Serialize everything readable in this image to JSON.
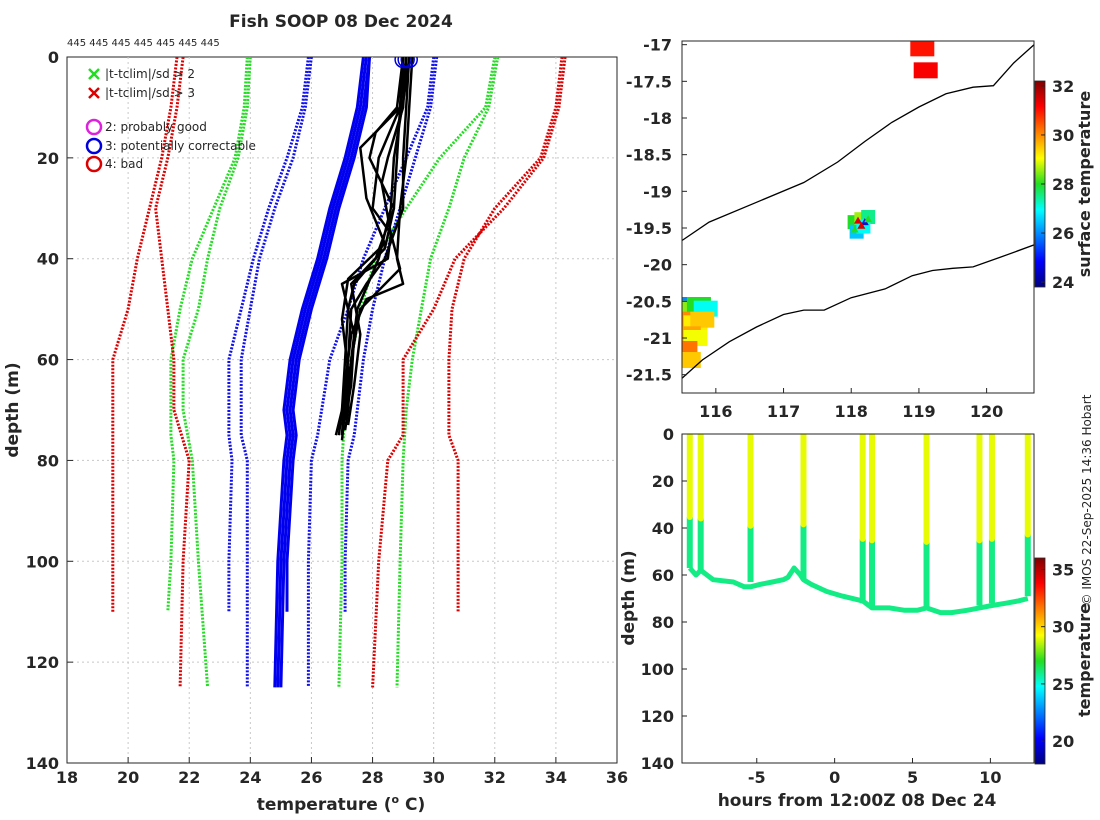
{
  "chart_data": [
    {
      "type": "line",
      "title": "Fish SOOP 08 Dec 2024",
      "top_label": "445 445 445 445 445 445 445",
      "xlabel": "temperature (°C)",
      "xlabel_main": "temperature (",
      "xlabel_sup": "o",
      "xlabel_end": " C)",
      "ylabel": "depth (m)",
      "xlim": [
        18,
        36
      ],
      "ylim": [
        0,
        140
      ],
      "xticks": [
        18,
        20,
        22,
        24,
        26,
        28,
        30,
        32,
        34,
        36
      ],
      "yticks": [
        0,
        20,
        40,
        60,
        80,
        100,
        120,
        140
      ],
      "grid": true,
      "legend": [
        {
          "marker": "x",
          "color": "#22dd22",
          "label": "|t-tclim|/sd > 2"
        },
        {
          "marker": "x",
          "color": "#dd0000",
          "label": "|t-tclim|/sd > 3"
        },
        {
          "marker": "o",
          "color": "#dd22dd",
          "label": "2: probably good"
        },
        {
          "marker": "o",
          "color": "#0000dd",
          "label": "3: potentially correctable"
        },
        {
          "marker": "o",
          "color": "#dd0000",
          "label": "4: bad"
        }
      ],
      "climatology": {
        "green_sd2": [
          {
            "depth": [
              0,
              10,
              20,
              30,
              40,
              50,
              60,
              75,
              80,
              100,
              110
            ],
            "temp": [
              23.9,
              23.8,
              23.5,
              22.8,
              22.1,
              21.7,
              21.4,
              21.4,
              21.5,
              21.4,
              21.3
            ]
          },
          {
            "depth": [
              0,
              10,
              20,
              30,
              40,
              50,
              60,
              70,
              80,
              100,
              125
            ],
            "temp": [
              24.0,
              23.9,
              23.6,
              23.0,
              22.6,
              22.3,
              21.8,
              21.8,
              22.1,
              22.3,
              22.6
            ]
          },
          {
            "depth": [
              0,
              10,
              20,
              30,
              40,
              50,
              60,
              70,
              80,
              100,
              125
            ],
            "temp": [
              32.1,
              31.8,
              31.0,
              30.5,
              29.9,
              29.6,
              29.3,
              29.1,
              29.0,
              28.9,
              28.8
            ]
          },
          {
            "depth": [
              0,
              10,
              20,
              30,
              40,
              50,
              60,
              70,
              80,
              100,
              125
            ],
            "temp": [
              32.0,
              31.7,
              30.2,
              29.1,
              28.1,
              27.6,
              27.3,
              27.1,
              27.0,
              27.0,
              26.9
            ]
          }
        ],
        "red_sd3": [
          {
            "depth": [
              0,
              10,
              20,
              30,
              40,
              50,
              60,
              75,
              80,
              100,
              110
            ],
            "temp": [
              21.6,
              21.4,
              21.1,
              20.7,
              20.3,
              20.0,
              19.5,
              19.5,
              19.5,
              19.5,
              19.5
            ]
          },
          {
            "depth": [
              0,
              10,
              20,
              30,
              40,
              50,
              60,
              70,
              80,
              100,
              125
            ],
            "temp": [
              21.8,
              21.6,
              21.3,
              20.9,
              21.1,
              21.3,
              21.5,
              21.5,
              22.0,
              21.8,
              21.7
            ]
          },
          {
            "depth": [
              0,
              10,
              20,
              30,
              40,
              50,
              60,
              75,
              80,
              100,
              110
            ],
            "temp": [
              34.2,
              34.0,
              33.5,
              32.0,
              31.0,
              30.6,
              30.5,
              30.5,
              30.8,
              30.8,
              30.8
            ]
          },
          {
            "depth": [
              0,
              10,
              20,
              30,
              40,
              50,
              60,
              75,
              80,
              100,
              125
            ],
            "temp": [
              34.3,
              34.1,
              33.6,
              32.3,
              30.7,
              30.0,
              29.0,
              29.0,
              28.5,
              28.2,
              28.0
            ]
          }
        ],
        "blue_mean": [
          {
            "depth": [
              0,
              10,
              20,
              30,
              40,
              50,
              60,
              75,
              80,
              100,
              110
            ],
            "temp": [
              25.9,
              25.7,
              25.2,
              24.6,
              24.1,
              23.7,
              23.3,
              23.3,
              23.4,
              23.3,
              23.3
            ]
          },
          {
            "depth": [
              0,
              10,
              20,
              30,
              40,
              50,
              60,
              75,
              80,
              100,
              125
            ],
            "temp": [
              26.0,
              25.8,
              25.4,
              24.8,
              24.3,
              24.0,
              23.7,
              23.7,
              23.9,
              23.9,
              23.9
            ]
          },
          {
            "depth": [
              0,
              10,
              20,
              30,
              40,
              50,
              60,
              75,
              80,
              100,
              125
            ],
            "temp": [
              30.0,
              29.8,
              29.1,
              28.4,
              27.7,
              27.2,
              26.6,
              26.2,
              26.0,
              25.9,
              25.9
            ]
          },
          {
            "depth": [
              0,
              10,
              20,
              30,
              40,
              50,
              60,
              75,
              80,
              100,
              110
            ],
            "temp": [
              30.1,
              29.9,
              29.4,
              28.9,
              28.4,
              28.0,
              27.7,
              27.4,
              27.2,
              27.1,
              27.1
            ]
          }
        ]
      },
      "observed_profiles": [
        {
          "depth": [
            0,
            10,
            20,
            30,
            40,
            45,
            50,
            60,
            70,
            75
          ],
          "temp": [
            29.2,
            29.1,
            29.0,
            29.0,
            28.4,
            27.8,
            27.3,
            27.2,
            27.0,
            26.8
          ]
        },
        {
          "depth": [
            0,
            10,
            20,
            30,
            40,
            45,
            50,
            60,
            70,
            75
          ],
          "temp": [
            29.0,
            28.9,
            28.8,
            28.7,
            28.1,
            27.4,
            27.2,
            27.1,
            27.0,
            26.9
          ]
        },
        {
          "depth": [
            0,
            10,
            20,
            30,
            35,
            42,
            50,
            60,
            70,
            74
          ],
          "temp": [
            29.1,
            28.9,
            28.2,
            28.0,
            28.6,
            28.9,
            27.6,
            27.3,
            27.2,
            27.1
          ]
        },
        {
          "depth": [
            0,
            10,
            15,
            20,
            30,
            38,
            45,
            55,
            65,
            73
          ],
          "temp": [
            29.0,
            28.8,
            28.1,
            27.9,
            28.7,
            28.4,
            27.3,
            27.6,
            27.4,
            27.2
          ]
        },
        {
          "depth": [
            0,
            10,
            20,
            30,
            40,
            45,
            48,
            55,
            65,
            75
          ],
          "temp": [
            29.3,
            29.2,
            29.1,
            28.9,
            28.8,
            29.0,
            27.8,
            27.3,
            27.1,
            27.0
          ]
        },
        {
          "depth": [
            0,
            10,
            20,
            25,
            35,
            40,
            45,
            55,
            65,
            72
          ],
          "temp": [
            29.1,
            29.0,
            28.5,
            28.3,
            28.6,
            28.5,
            27.0,
            27.4,
            27.3,
            27.1
          ]
        },
        {
          "depth": [
            0,
            5,
            20,
            30,
            40,
            50,
            60,
            70,
            76
          ],
          "temp": [
            29.2,
            29.1,
            28.7,
            28.6,
            28.2,
            27.5,
            27.3,
            27.1,
            27.0
          ]
        },
        {
          "depth": [
            0,
            10,
            18,
            28,
            37,
            44,
            52,
            62,
            72
          ],
          "temp": [
            29.0,
            28.9,
            27.6,
            27.8,
            28.4,
            27.2,
            27.0,
            27.2,
            27.1
          ]
        }
      ],
      "first_guess_profiles": [
        {
          "depth": [
            0,
            10,
            20,
            30,
            40,
            50,
            60,
            70,
            75,
            80,
            100,
            125
          ],
          "temp": [
            27.8,
            27.6,
            27.2,
            26.7,
            26.3,
            25.8,
            25.4,
            25.2,
            25.3,
            25.2,
            25.0,
            24.9
          ]
        },
        {
          "depth": [
            0,
            10,
            20,
            30,
            40,
            50,
            60,
            70,
            75,
            80,
            100,
            125
          ],
          "temp": [
            27.9,
            27.7,
            27.3,
            26.8,
            26.4,
            25.9,
            25.5,
            25.3,
            25.4,
            25.3,
            25.1,
            25.0
          ]
        },
        {
          "depth": [
            0,
            10,
            20,
            30,
            40,
            50,
            60,
            70,
            75,
            80,
            100,
            110
          ],
          "temp": [
            27.9,
            27.8,
            27.4,
            26.9,
            26.5,
            26.0,
            25.6,
            25.4,
            25.5,
            25.4,
            25.2,
            25.2
          ]
        },
        {
          "depth": [
            0,
            10,
            20,
            30,
            40,
            50,
            60,
            70,
            75,
            80,
            100,
            125
          ],
          "temp": [
            27.7,
            27.5,
            27.1,
            26.6,
            26.2,
            25.7,
            25.3,
            25.1,
            25.2,
            25.1,
            24.9,
            24.8
          ]
        }
      ],
      "flag_circles": [
        {
          "depth": 0.5,
          "temp": 29.0,
          "flag": 3
        },
        {
          "depth": 0.5,
          "temp": 29.1,
          "flag": 3
        },
        {
          "depth": 0.5,
          "temp": 29.2,
          "flag": 3
        }
      ]
    },
    {
      "type": "heatmap",
      "title": "",
      "xlim": [
        115.5,
        120.7
      ],
      "ylim": [
        -21.75,
        -16.95
      ],
      "xticks": [
        116,
        117,
        118,
        119,
        120
      ],
      "yticks": [
        -17,
        -17.5,
        -18,
        -18.5,
        -19,
        -19.5,
        -20,
        -20.5,
        -21,
        -21.5
      ],
      "ytick_labels": [
        "-17",
        "-17.5",
        "-18",
        "-18.5",
        "-19",
        "-19.5",
        "-20",
        "-20.5",
        "-21",
        "-21.5"
      ],
      "colorbar_label": "surface temperature",
      "colorbar_range": [
        23.8,
        32.2
      ],
      "colorbar_ticks": [
        24,
        26,
        28,
        30,
        32
      ],
      "coast_outer": {
        "lon": [
          115.5,
          115.9,
          116.6,
          117.3,
          117.8,
          118.2,
          118.6,
          119.0,
          119.4,
          119.8,
          120.1,
          120.4,
          120.7
        ],
        "lat": [
          -19.67,
          -19.42,
          -19.15,
          -18.88,
          -18.6,
          -18.32,
          -18.06,
          -17.85,
          -17.67,
          -17.58,
          -17.56,
          -17.25,
          -17.0
        ]
      },
      "coast_inner": {
        "lon": [
          115.5,
          115.8,
          116.2,
          116.6,
          117.0,
          117.3,
          117.6,
          118.0,
          118.5,
          118.9,
          119.2,
          119.5,
          119.8,
          120.2,
          120.7
        ],
        "lat": [
          -21.55,
          -21.3,
          -21.05,
          -20.85,
          -20.68,
          -20.62,
          -20.62,
          -20.45,
          -20.33,
          -20.15,
          -20.08,
          -20.05,
          -20.03,
          -19.9,
          -19.73
        ]
      },
      "points": [
        {
          "lon": 118.05,
          "lat": -19.42,
          "t": 28.0
        },
        {
          "lon": 118.15,
          "lat": -19.38,
          "t": 28.6
        },
        {
          "lon": 118.25,
          "lat": -19.35,
          "t": 27.5
        },
        {
          "lon": 118.08,
          "lat": -19.55,
          "t": 26.5
        },
        {
          "lon": 118.18,
          "lat": -19.48,
          "t": 27.0
        }
      ],
      "markers": [
        {
          "lon": 118.1,
          "lat": -19.4,
          "color": "#dd0000"
        },
        {
          "lon": 118.2,
          "lat": -19.42,
          "color": "#1010dd"
        },
        {
          "lon": 118.25,
          "lat": -19.38,
          "color": "#22dd22"
        },
        {
          "lon": 118.05,
          "lat": -19.52,
          "color": "#22dd22"
        },
        {
          "lon": 118.15,
          "lat": -19.47,
          "color": "#dd0000"
        }
      ],
      "sst_patch": [
        {
          "lon": 115.55,
          "lat": -20.55,
          "t": 26.0
        },
        {
          "lon": 115.65,
          "lat": -20.6,
          "t": 28.5
        },
        {
          "lon": 115.75,
          "lat": -20.55,
          "t": 28.0
        },
        {
          "lon": 115.85,
          "lat": -20.6,
          "t": 27.0
        },
        {
          "lon": 115.6,
          "lat": -20.75,
          "t": 30.0
        },
        {
          "lon": 115.7,
          "lat": -20.8,
          "t": 29.2
        },
        {
          "lon": 115.8,
          "lat": -20.75,
          "t": 29.5
        },
        {
          "lon": 115.6,
          "lat": -20.95,
          "t": 29.8
        },
        {
          "lon": 115.7,
          "lat": -21.0,
          "t": 29.0
        },
        {
          "lon": 115.55,
          "lat": -21.15,
          "t": 30.2
        },
        {
          "lon": 115.6,
          "lat": -21.3,
          "t": 29.5
        },
        {
          "lon": 119.05,
          "lat": -17.05,
          "t": 31.0
        },
        {
          "lon": 119.1,
          "lat": -17.35,
          "t": 31.2
        }
      ]
    },
    {
      "type": "scatter",
      "xlabel": "hours from 12:00Z 08 Dec 24",
      "ylabel": "depth (m)",
      "xlim": [
        -9.8,
        12.8
      ],
      "ylim": [
        0,
        140
      ],
      "xticks": [
        -5,
        0,
        5,
        10
      ],
      "yticks": [
        0,
        20,
        40,
        60,
        80,
        100,
        120,
        140
      ],
      "colorbar_label": "temperature",
      "colorbar_range": [
        18,
        36
      ],
      "colorbar_ticks": [
        20,
        25,
        30,
        35
      ],
      "casts": [
        {
          "hour": -9.3,
          "bottom": 57
        },
        {
          "hour": -8.6,
          "bottom": 58
        },
        {
          "hour": -5.4,
          "bottom": 63
        },
        {
          "hour": -2.0,
          "bottom": 62
        },
        {
          "hour": 1.8,
          "bottom": 72
        },
        {
          "hour": 2.4,
          "bottom": 73
        },
        {
          "hour": 5.9,
          "bottom": 74
        },
        {
          "hour": 9.3,
          "bottom": 73
        },
        {
          "hour": 10.1,
          "bottom": 72
        },
        {
          "hour": 12.4,
          "bottom": 69
        }
      ],
      "seabed_track": {
        "hour": [
          -9.3,
          -8.9,
          -8.6,
          -7.8,
          -6.5,
          -5.8,
          -5.4,
          -4.8,
          -4.0,
          -3.3,
          -3.0,
          -2.6,
          -2.2,
          -2.0,
          -1.5,
          -0.5,
          0.5,
          1.8,
          2.4,
          3.5,
          4.5,
          5.3,
          5.9,
          6.8,
          7.5,
          8.5,
          9.3,
          10.1,
          11.0,
          11.8,
          12.4
        ],
        "depth": [
          57,
          60,
          58,
          62,
          63,
          65,
          65,
          64,
          63,
          62,
          61,
          57,
          60,
          62,
          64,
          67,
          69,
          71,
          74,
          74,
          75,
          75,
          74,
          76,
          76,
          75,
          74,
          73,
          72,
          71,
          70
        ]
      },
      "track_temp_top": 29,
      "track_temp_bottom": 26,
      "side_label": "© IMOS 22-Sep-2025 14:36 Hobart"
    }
  ]
}
